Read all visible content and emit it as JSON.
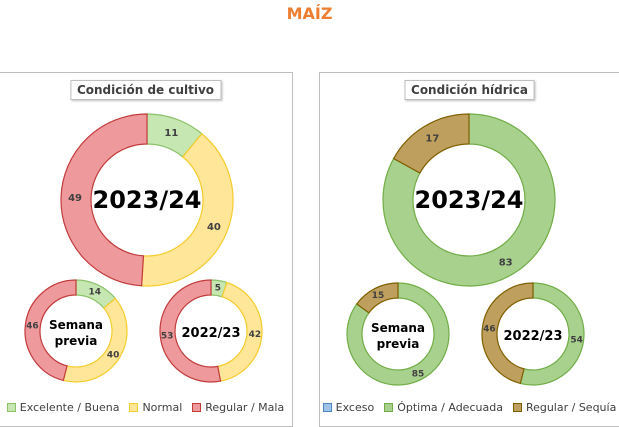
{
  "page": {
    "title": "MAÍZ",
    "title_color": "#ed7d31"
  },
  "chart_data": [
    {
      "type": "pie",
      "title": "Condición de cultivo",
      "categories": [
        "Excelente / Buena",
        "Normal",
        "Regular / Mala"
      ],
      "colors": [
        "#c6e7b1",
        "#ffe699",
        "#ee9a9d"
      ],
      "borders": [
        "#8cc26a",
        "#f5cc2d",
        "#c23b3b"
      ],
      "rings": [
        {
          "label": "2023/24",
          "values": [
            11,
            40,
            49
          ]
        },
        {
          "label": "Semana previa",
          "values": [
            14,
            40,
            46
          ]
        },
        {
          "label": "2022/23",
          "values": [
            5,
            42,
            53
          ]
        }
      ]
    },
    {
      "type": "pie",
      "title": "Condición hídrica",
      "categories": [
        "Exceso",
        "Óptima / Adecuada",
        "Regular / Sequía"
      ],
      "colors": [
        "#9dc3e6",
        "#a9d18e",
        "#bf9f5e"
      ],
      "borders": [
        "#4f86c6",
        "#70ad47",
        "#7f6000"
      ],
      "rings": [
        {
          "label": "2023/24",
          "values": [
            0,
            83,
            17
          ]
        },
        {
          "label": "Semana previa",
          "values": [
            0,
            85,
            15
          ]
        },
        {
          "label": "2022/23",
          "values": [
            0,
            54,
            46
          ]
        }
      ]
    }
  ]
}
